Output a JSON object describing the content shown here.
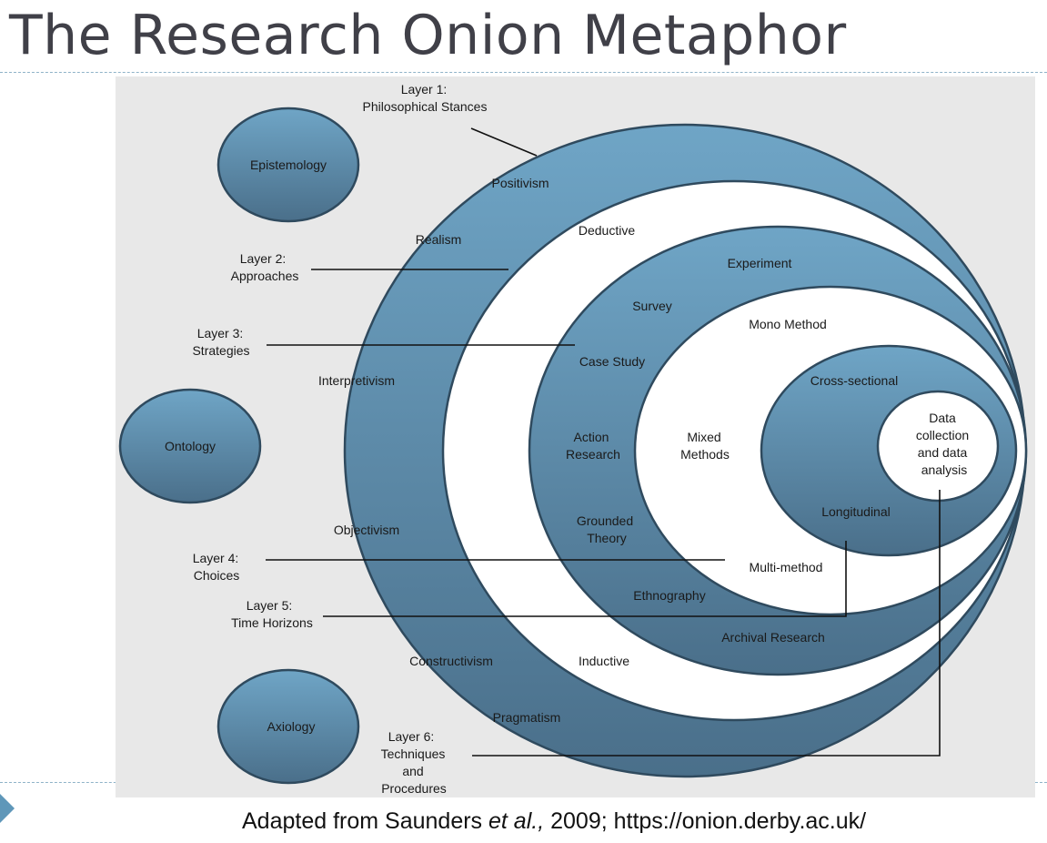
{
  "title": "The Research Onion Metaphor",
  "caption": {
    "prefix": "Adapted from Saunders ",
    "italic": "et al.,",
    "suffix": " 2009; https://onion.derby.ac.uk/"
  },
  "colors": {
    "ring_dark": "#4a6f8a",
    "ring_light": "#6fa5c6",
    "white_ring": "#ffffff",
    "background": "#e8e8e8",
    "accent": "#5f97b9"
  },
  "side_bubbles": {
    "epistemology": "Epistemology",
    "ontology": "Ontology",
    "axiology": "Axiology"
  },
  "layers": {
    "layer1": [
      "Layer 1:",
      "Philosophical Stances"
    ],
    "layer2": [
      "Layer 2:",
      "Approaches"
    ],
    "layer3": [
      "Layer 3:",
      "Strategies"
    ],
    "layer4": [
      "Layer 4:",
      "Choices"
    ],
    "layer5": [
      "Layer 5:",
      "Time Horizons"
    ],
    "layer6": [
      "Layer 6:",
      "Techniques",
      "and",
      "Procedures"
    ]
  },
  "philosophies": {
    "positivism": "Positivism",
    "realism": "Realism",
    "interpretivism": "Interpretivism",
    "objectivism": "Objectivism",
    "constructivism": "Constructivism",
    "pragmatism": "Pragmatism"
  },
  "approaches": {
    "deductive": "Deductive",
    "inductive": "Inductive"
  },
  "strategies": {
    "experiment": "Experiment",
    "survey": "Survey",
    "case_study": "Case Study",
    "action_research": [
      "Action",
      "Research"
    ],
    "grounded_theory": [
      "Grounded",
      "Theory"
    ],
    "ethnography": "Ethnography",
    "archival_research": "Archival Research"
  },
  "choices": {
    "mono_method": "Mono Method",
    "mixed_methods": [
      "Mixed",
      "Methods"
    ],
    "multi_method": "Multi-method"
  },
  "time_horizons": {
    "cross_sectional": "Cross-sectional",
    "longitudinal": "Longitudinal"
  },
  "core": [
    "Data",
    "collection",
    "and data",
    "analysis"
  ]
}
